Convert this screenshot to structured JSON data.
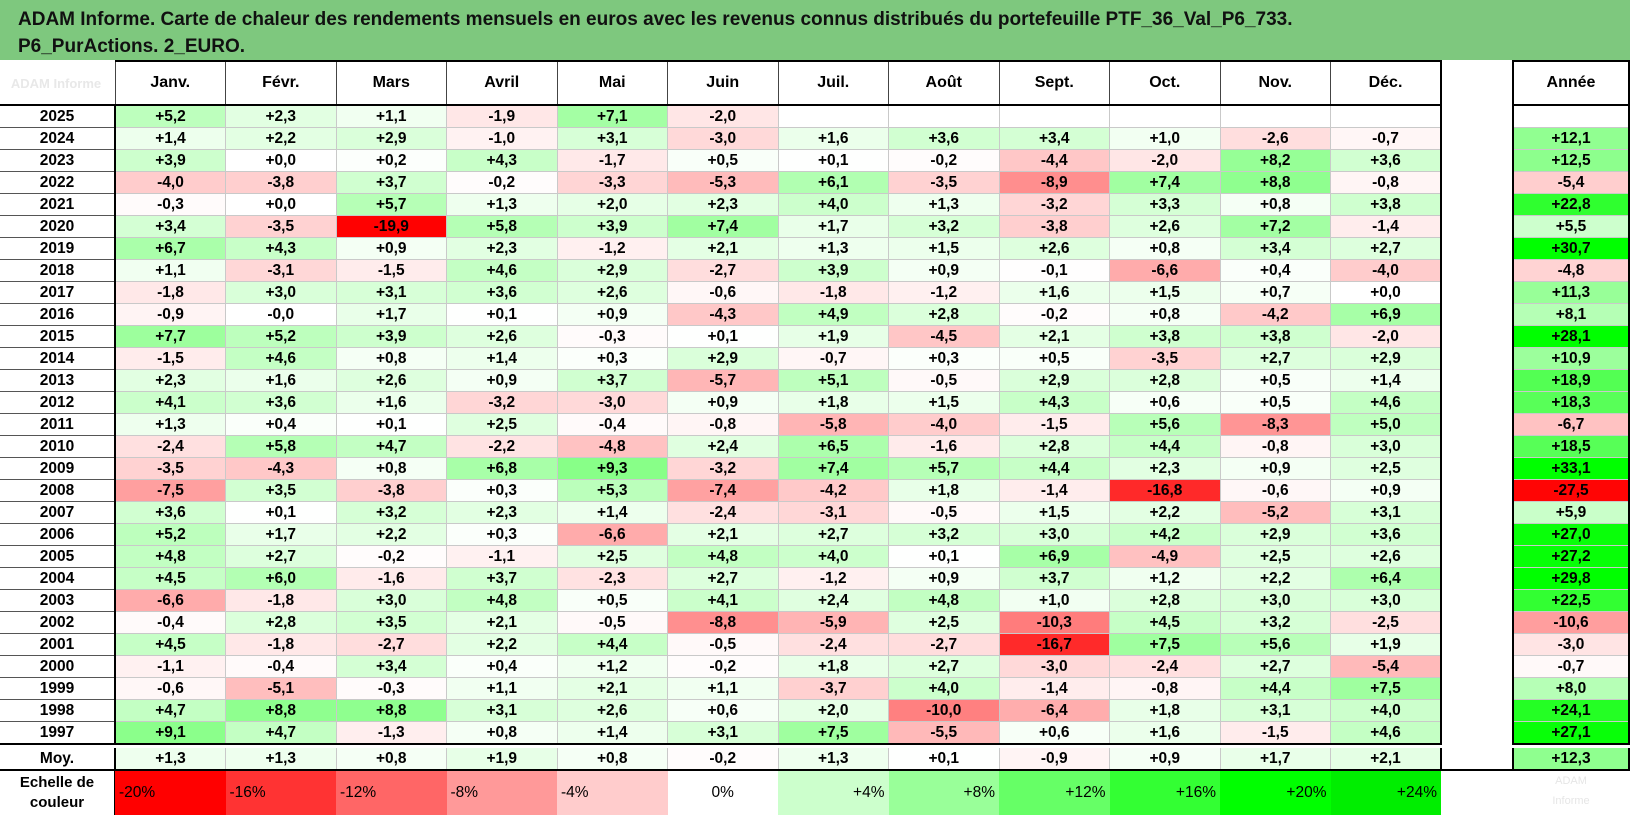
{
  "title": {
    "line1": "ADAM Informe. Carte de chaleur des rendements mensuels en euros avec les revenus connus distribués du portefeuille PTF_36_Val_P6_733.",
    "line2": "P6_PurActions. 2_EURO."
  },
  "corner_label": "ADAM Informe",
  "scale_label_1": "Echelle de",
  "scale_label_2": "couleur",
  "scale_ghost_1": "ADAM",
  "scale_ghost_2": "Informe",
  "chart_data": {
    "type": "heatmap",
    "months": [
      "Janv.",
      "Févr.",
      "Mars",
      "Avril",
      "Mai",
      "Juin",
      "Juil.",
      "Août",
      "Sept.",
      "Oct.",
      "Nov.",
      "Déc."
    ],
    "annual_header": "Année",
    "rows": [
      {
        "year": "2025",
        "m": [
          "+5,2",
          "+2,3",
          "+1,1",
          "-1,9",
          "+7,1",
          "-2,0",
          "",
          "",
          "",
          "",
          "",
          ""
        ],
        "annual": ""
      },
      {
        "year": "2024",
        "m": [
          "+1,4",
          "+2,2",
          "+2,9",
          "-1,0",
          "+3,1",
          "-3,0",
          "+1,6",
          "+3,6",
          "+3,4",
          "+1,0",
          "-2,6",
          "-0,7"
        ],
        "annual": "+12,1"
      },
      {
        "year": "2023",
        "m": [
          "+3,9",
          "+0,0",
          "+0,2",
          "+4,3",
          "-1,7",
          "+0,5",
          "+0,1",
          "-0,2",
          "-4,4",
          "-2,0",
          "+8,2",
          "+3,6"
        ],
        "annual": "+12,5"
      },
      {
        "year": "2022",
        "m": [
          "-4,0",
          "-3,8",
          "+3,7",
          "-0,2",
          "-3,3",
          "-5,3",
          "+6,1",
          "-3,5",
          "-8,9",
          "+7,4",
          "+8,8",
          "-0,8"
        ],
        "annual": "-5,4"
      },
      {
        "year": "2021",
        "m": [
          "-0,3",
          "+0,0",
          "+5,7",
          "+1,3",
          "+2,0",
          "+2,3",
          "+4,0",
          "+1,3",
          "-3,2",
          "+3,3",
          "+0,8",
          "+3,8"
        ],
        "annual": "+22,8"
      },
      {
        "year": "2020",
        "m": [
          "+3,4",
          "-3,5",
          "-19,9",
          "+5,8",
          "+3,9",
          "+7,4",
          "+1,7",
          "+3,2",
          "-3,8",
          "+2,6",
          "+7,2",
          "-1,4"
        ],
        "annual": "+5,5"
      },
      {
        "year": "2019",
        "m": [
          "+6,7",
          "+4,3",
          "+0,9",
          "+2,3",
          "-1,2",
          "+2,1",
          "+1,3",
          "+1,5",
          "+2,6",
          "+0,8",
          "+3,4",
          "+2,7"
        ],
        "annual": "+30,7"
      },
      {
        "year": "2018",
        "m": [
          "+1,1",
          "-3,1",
          "-1,5",
          "+4,6",
          "+2,9",
          "-2,7",
          "+3,9",
          "+0,9",
          "-0,1",
          "-6,6",
          "+0,4",
          "-4,0"
        ],
        "annual": "-4,8"
      },
      {
        "year": "2017",
        "m": [
          "-1,8",
          "+3,0",
          "+3,1",
          "+3,6",
          "+2,6",
          "-0,6",
          "-1,8",
          "-1,2",
          "+1,6",
          "+1,5",
          "+0,7",
          "+0,0"
        ],
        "annual": "+11,3"
      },
      {
        "year": "2016",
        "m": [
          "-0,9",
          "-0,0",
          "+1,7",
          "+0,1",
          "+0,9",
          "-4,3",
          "+4,9",
          "+2,8",
          "-0,2",
          "+0,8",
          "-4,2",
          "+6,9"
        ],
        "annual": "+8,1"
      },
      {
        "year": "2015",
        "m": [
          "+7,7",
          "+5,2",
          "+3,9",
          "+2,6",
          "-0,3",
          "+0,1",
          "+1,9",
          "-4,5",
          "+2,1",
          "+3,8",
          "+3,8",
          "-2,0"
        ],
        "annual": "+28,1"
      },
      {
        "year": "2014",
        "m": [
          "-1,5",
          "+4,6",
          "+0,8",
          "+1,4",
          "+0,3",
          "+2,9",
          "-0,7",
          "+0,3",
          "+0,5",
          "-3,5",
          "+2,7",
          "+2,9"
        ],
        "annual": "+10,9"
      },
      {
        "year": "2013",
        "m": [
          "+2,3",
          "+1,6",
          "+2,6",
          "+0,9",
          "+3,7",
          "-5,7",
          "+5,1",
          "-0,5",
          "+2,9",
          "+2,8",
          "+0,5",
          "+1,4"
        ],
        "annual": "+18,9"
      },
      {
        "year": "2012",
        "m": [
          "+4,1",
          "+3,6",
          "+1,6",
          "-3,2",
          "-3,0",
          "+0,9",
          "+1,8",
          "+1,5",
          "+4,3",
          "+0,6",
          "+0,5",
          "+4,6"
        ],
        "annual": "+18,3"
      },
      {
        "year": "2011",
        "m": [
          "+1,3",
          "+0,4",
          "+0,1",
          "+2,5",
          "-0,4",
          "-0,8",
          "-5,8",
          "-4,0",
          "-1,5",
          "+5,6",
          "-8,3",
          "+5,0"
        ],
        "annual": "-6,7"
      },
      {
        "year": "2010",
        "m": [
          "-2,4",
          "+5,8",
          "+4,7",
          "-2,2",
          "-4,8",
          "+2,4",
          "+6,5",
          "-1,6",
          "+2,8",
          "+4,4",
          "-0,8",
          "+3,0"
        ],
        "annual": "+18,5"
      },
      {
        "year": "2009",
        "m": [
          "-3,5",
          "-4,3",
          "+0,8",
          "+6,8",
          "+9,3",
          "-3,2",
          "+7,4",
          "+5,7",
          "+4,4",
          "+2,3",
          "+0,9",
          "+2,5"
        ],
        "annual": "+33,1"
      },
      {
        "year": "2008",
        "m": [
          "-7,5",
          "+3,5",
          "-3,8",
          "+0,3",
          "+5,3",
          "-7,4",
          "-4,2",
          "+1,8",
          "-1,4",
          "-16,8",
          "-0,6",
          "+0,9"
        ],
        "annual": "-27,5"
      },
      {
        "year": "2007",
        "m": [
          "+3,6",
          "+0,1",
          "+3,2",
          "+2,3",
          "+1,4",
          "-2,4",
          "-3,1",
          "-0,5",
          "+1,5",
          "+2,2",
          "-5,2",
          "+3,1"
        ],
        "annual": "+5,9"
      },
      {
        "year": "2006",
        "m": [
          "+5,2",
          "+1,7",
          "+2,2",
          "+0,3",
          "-6,6",
          "+2,1",
          "+2,7",
          "+3,2",
          "+3,0",
          "+4,2",
          "+2,9",
          "+3,6"
        ],
        "annual": "+27,0"
      },
      {
        "year": "2005",
        "m": [
          "+4,8",
          "+2,7",
          "-0,2",
          "-1,1",
          "+2,5",
          "+4,8",
          "+4,0",
          "+0,1",
          "+6,9",
          "-4,9",
          "+2,5",
          "+2,6"
        ],
        "annual": "+27,2"
      },
      {
        "year": "2004",
        "m": [
          "+4,5",
          "+6,0",
          "-1,6",
          "+3,7",
          "-2,3",
          "+2,7",
          "-1,2",
          "+0,9",
          "+3,7",
          "+1,2",
          "+2,2",
          "+6,4"
        ],
        "annual": "+29,8"
      },
      {
        "year": "2003",
        "m": [
          "-6,6",
          "-1,8",
          "+3,0",
          "+4,8",
          "+0,5",
          "+4,1",
          "+2,4",
          "+4,8",
          "+1,0",
          "+2,8",
          "+3,0",
          "+3,0"
        ],
        "annual": "+22,5"
      },
      {
        "year": "2002",
        "m": [
          "-0,4",
          "+2,8",
          "+3,5",
          "+2,1",
          "-0,5",
          "-8,8",
          "-5,9",
          "+2,5",
          "-10,3",
          "+4,5",
          "+3,2",
          "-2,5"
        ],
        "annual": "-10,6"
      },
      {
        "year": "2001",
        "m": [
          "+4,5",
          "-1,8",
          "-2,7",
          "+2,2",
          "+4,4",
          "-0,5",
          "-2,4",
          "-2,7",
          "-16,7",
          "+7,5",
          "+5,6",
          "+1,9"
        ],
        "annual": "-3,0"
      },
      {
        "year": "2000",
        "m": [
          "-1,1",
          "-0,4",
          "+3,4",
          "+0,4",
          "+1,2",
          "-0,2",
          "+1,8",
          "+2,7",
          "-3,0",
          "-2,4",
          "+2,7",
          "-5,4"
        ],
        "annual": "-0,7"
      },
      {
        "year": "1999",
        "m": [
          "-0,6",
          "-5,1",
          "-0,3",
          "+1,1",
          "+2,1",
          "+1,1",
          "-3,7",
          "+4,0",
          "-1,4",
          "-0,8",
          "+4,4",
          "+7,5"
        ],
        "annual": "+8,0"
      },
      {
        "year": "1998",
        "m": [
          "+4,7",
          "+8,8",
          "+8,8",
          "+3,1",
          "+2,6",
          "+0,6",
          "+2,0",
          "-10,0",
          "-6,4",
          "+1,8",
          "+3,1",
          "+4,0"
        ],
        "annual": "+24,1"
      },
      {
        "year": "1997",
        "m": [
          "+9,1",
          "+4,7",
          "-1,3",
          "+0,8",
          "+1,4",
          "+3,1",
          "+7,5",
          "-5,5",
          "+0,6",
          "+1,6",
          "-1,5",
          "+4,6"
        ],
        "annual": "+27,1"
      }
    ],
    "average": {
      "label": "Moy.",
      "m": [
        "+1,3",
        "+1,3",
        "+0,8",
        "+1,9",
        "+0,8",
        "-0,2",
        "+1,3",
        "+0,1",
        "-0,9",
        "+0,9",
        "+1,7",
        "+2,1"
      ],
      "annual": "+12,3"
    },
    "color_scale": [
      {
        "label": "-20%",
        "value": -20,
        "color": "#ff0000"
      },
      {
        "label": "-16%",
        "value": -16,
        "color": "#ff3333"
      },
      {
        "label": "-12%",
        "value": -12,
        "color": "#ff6666"
      },
      {
        "label": "-8%",
        "value": -8,
        "color": "#ff9999"
      },
      {
        "label": "-4%",
        "value": -4,
        "color": "#ffcccc"
      },
      {
        "label": "0%",
        "value": 0,
        "color": "#ffffff"
      },
      {
        "label": "+4%",
        "value": 4,
        "color": "#ccffcc"
      },
      {
        "label": "+8%",
        "value": 8,
        "color": "#99ff99"
      },
      {
        "label": "+12%",
        "value": 12,
        "color": "#66ff66"
      },
      {
        "label": "+16%",
        "value": 16,
        "color": "#33ff33"
      },
      {
        "label": "+20%",
        "value": 20,
        "color": "#00ff00"
      },
      {
        "label": "+24%",
        "value": 24,
        "color": "#00ee00"
      }
    ]
  }
}
